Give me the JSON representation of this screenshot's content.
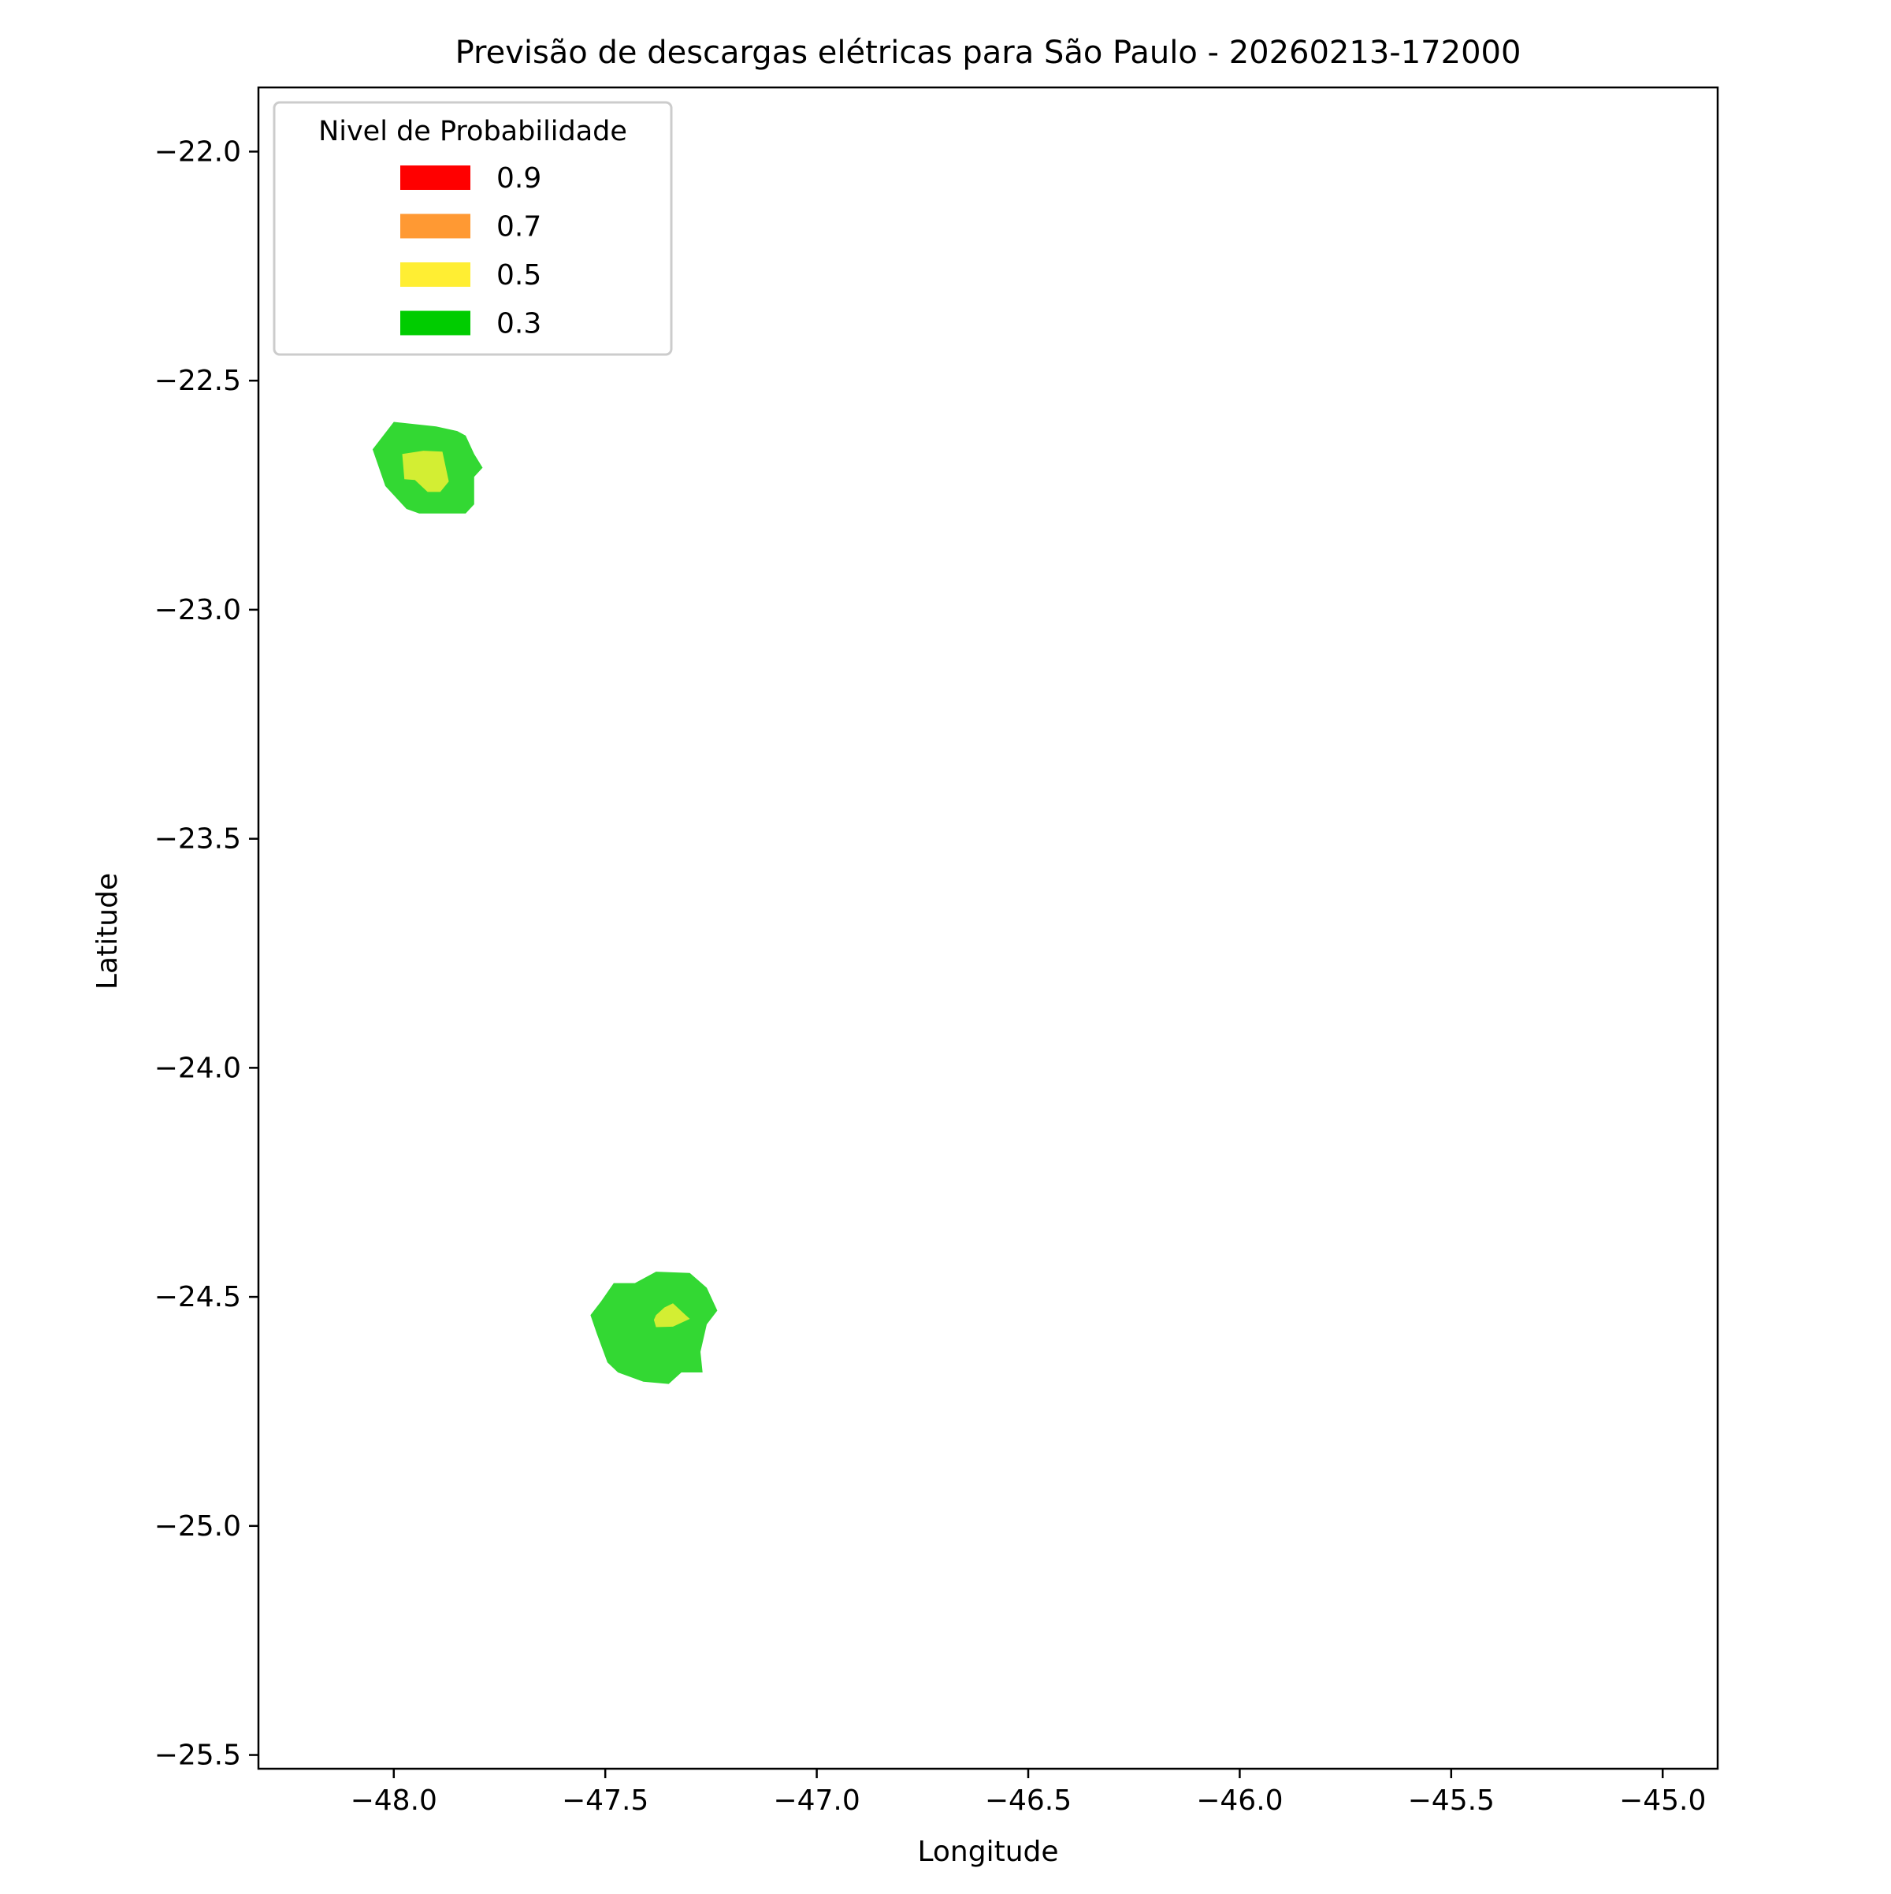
{
  "chart_data": {
    "type": "contour",
    "title": "Previsão de descargas elétricas para São Paulo - 20260213-172000",
    "xlabel": "Longitude",
    "ylabel": "Latitude",
    "xlim": [
      -48.32,
      -44.87
    ],
    "ylim": [
      -25.53,
      -21.86
    ],
    "xticks": [
      {
        "value": -48.0,
        "label": "−48.0"
      },
      {
        "value": -47.5,
        "label": "−47.5"
      },
      {
        "value": -47.0,
        "label": "−47.0"
      },
      {
        "value": -46.5,
        "label": "−46.5"
      },
      {
        "value": -46.0,
        "label": "−46.0"
      },
      {
        "value": -45.5,
        "label": "−45.5"
      },
      {
        "value": -45.0,
        "label": "−45.0"
      }
    ],
    "yticks": [
      {
        "value": -22.0,
        "label": "−22.0"
      },
      {
        "value": -22.5,
        "label": "−22.5"
      },
      {
        "value": -23.0,
        "label": "−23.0"
      },
      {
        "value": -23.5,
        "label": "−23.5"
      },
      {
        "value": -24.0,
        "label": "−24.0"
      },
      {
        "value": -24.5,
        "label": "−24.5"
      },
      {
        "value": -25.0,
        "label": "−25.0"
      },
      {
        "value": -25.5,
        "label": "−25.5"
      }
    ],
    "grid": false,
    "legend": {
      "title": "Nivel de Probabilidade",
      "placement": "top-left",
      "entries": [
        {
          "label": "0.9",
          "color": "#ff0000"
        },
        {
          "label": "0.7",
          "color": "#ff9933"
        },
        {
          "label": "0.5",
          "color": "#ffee33"
        },
        {
          "label": "0.3",
          "color": "#00cc00"
        }
      ]
    },
    "regions": [
      {
        "name": "cell-north",
        "level": 0.3,
        "color": "#33d833",
        "polygon": [
          [
            -48.05,
            -22.65
          ],
          [
            -48.0,
            -22.59
          ],
          [
            -47.9,
            -22.6
          ],
          [
            -47.85,
            -22.61
          ],
          [
            -47.83,
            -22.62
          ],
          [
            -47.81,
            -22.66
          ],
          [
            -47.79,
            -22.69
          ],
          [
            -47.81,
            -22.71
          ],
          [
            -47.81,
            -22.77
          ],
          [
            -47.83,
            -22.79
          ],
          [
            -47.94,
            -22.79
          ],
          [
            -47.97,
            -22.78
          ],
          [
            -48.02,
            -22.73
          ]
        ]
      },
      {
        "name": "cell-north-core",
        "level": 0.5,
        "color": "#d3ee33",
        "polygon": [
          [
            -47.98,
            -22.66
          ],
          [
            -47.93,
            -22.653
          ],
          [
            -47.885,
            -22.655
          ],
          [
            -47.87,
            -22.72
          ],
          [
            -47.89,
            -22.743
          ],
          [
            -47.92,
            -22.743
          ],
          [
            -47.95,
            -22.717
          ],
          [
            -47.975,
            -22.715
          ]
        ]
      },
      {
        "name": "cell-south",
        "level": 0.3,
        "color": "#33d833",
        "polygon": [
          [
            -47.51,
            -24.51
          ],
          [
            -47.48,
            -24.47
          ],
          [
            -47.43,
            -24.47
          ],
          [
            -47.38,
            -24.445
          ],
          [
            -47.3,
            -24.448
          ],
          [
            -47.26,
            -24.48
          ],
          [
            -47.235,
            -24.53
          ],
          [
            -47.26,
            -24.56
          ],
          [
            -47.275,
            -24.62
          ],
          [
            -47.27,
            -24.665
          ],
          [
            -47.32,
            -24.665
          ],
          [
            -47.35,
            -24.69
          ],
          [
            -47.41,
            -24.685
          ],
          [
            -47.47,
            -24.665
          ],
          [
            -47.495,
            -24.643
          ],
          [
            -47.52,
            -24.58
          ],
          [
            -47.535,
            -24.54
          ]
        ]
      },
      {
        "name": "cell-south-core",
        "level": 0.5,
        "color": "#d3ee33",
        "polygon": [
          [
            -47.38,
            -24.54
          ],
          [
            -47.36,
            -24.523
          ],
          [
            -47.34,
            -24.514
          ],
          [
            -47.31,
            -24.54
          ],
          [
            -47.3,
            -24.548
          ],
          [
            -47.34,
            -24.565
          ],
          [
            -47.38,
            -24.566
          ],
          [
            -47.385,
            -24.55
          ]
        ]
      }
    ]
  }
}
